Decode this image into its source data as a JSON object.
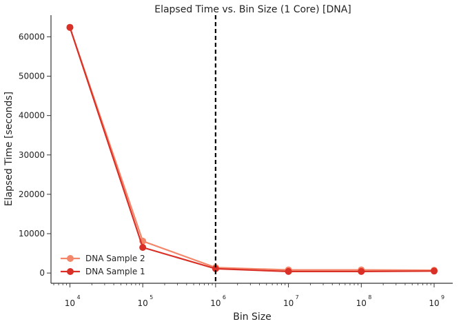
{
  "chart_data": {
    "type": "line",
    "title": "Elapsed Time vs. Bin Size (1 Core) [DNA]",
    "xlabel": "Bin Size",
    "ylabel": "Elapsed Time [seconds]",
    "x_scale": "log",
    "xlim": [
      5500,
      1800000000
    ],
    "ylim": [
      -2600,
      65500
    ],
    "x": [
      10000,
      100000,
      1000000,
      10000000,
      100000000,
      1000000000
    ],
    "x_ticks": [
      {
        "value": 10000,
        "base": "10",
        "exp": "4"
      },
      {
        "value": 100000,
        "base": "10",
        "exp": "5"
      },
      {
        "value": 1000000,
        "base": "10",
        "exp": "6"
      },
      {
        "value": 10000000,
        "base": "10",
        "exp": "7"
      },
      {
        "value": 100000000,
        "base": "10",
        "exp": "8"
      },
      {
        "value": 1000000000,
        "base": "10",
        "exp": "9"
      }
    ],
    "y_ticks": [
      {
        "value": 0,
        "label": "0"
      },
      {
        "value": 10000,
        "label": "10000"
      },
      {
        "value": 20000,
        "label": "20000"
      },
      {
        "value": 30000,
        "label": "30000"
      },
      {
        "value": 40000,
        "label": "40000"
      },
      {
        "value": 50000,
        "label": "50000"
      },
      {
        "value": 60000,
        "label": "60000"
      }
    ],
    "series": [
      {
        "name": "DNA Sample 2",
        "color": "#f4866a",
        "values": [
          62400,
          8100,
          1400,
          800,
          800,
          700
        ]
      },
      {
        "name": "DNA Sample 1",
        "color": "#d93027",
        "values": [
          62400,
          6500,
          1100,
          400,
          400,
          500
        ]
      }
    ],
    "vline": {
      "x": 1000000,
      "color": "#000000",
      "style": "dashed"
    },
    "legend_position": "lower-left",
    "grid": false
  }
}
